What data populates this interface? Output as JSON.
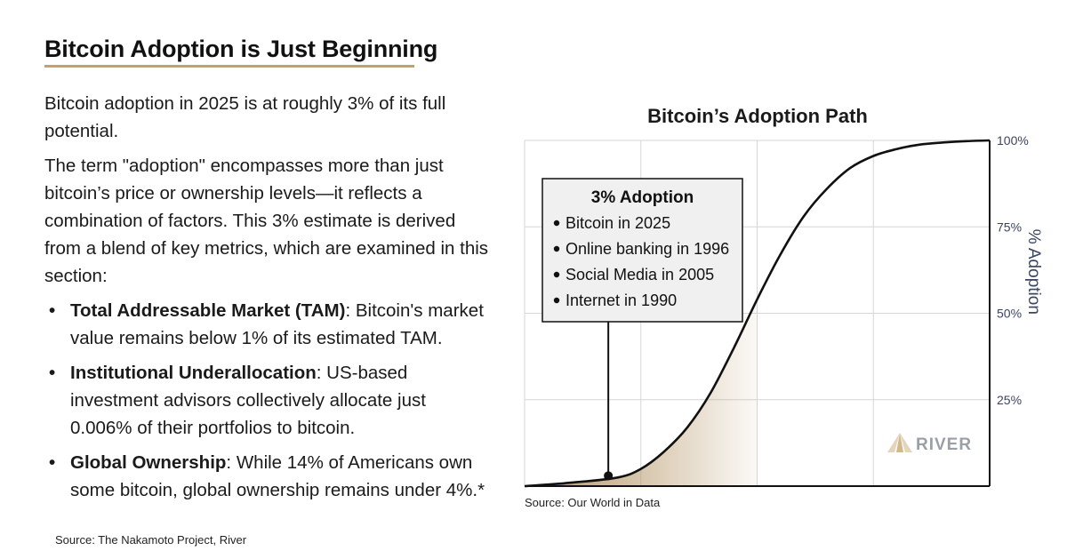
{
  "page": {
    "title": "Bitcoin Adoption is Just Beginning",
    "paragraphs": [
      "Bitcoin adoption in 2025 is at roughly 3% of its full potential.",
      "The term \"adoption\" encompasses more than just bitcoin’s price or ownership levels—it reflects a combination of factors. This 3% estimate is derived from a blend of key metrics, which are examined in this section:"
    ],
    "bullets": [
      {
        "term": "Total Addressable Market (TAM)",
        "text": ": Bitcoin's market value remains below 1% of its estimated TAM."
      },
      {
        "term": "Institutional Underallocation",
        "text": ": US-based investment advisors collectively allocate just 0.006% of their portfolios to bitcoin."
      },
      {
        "term": "Global Ownership",
        "text": ": While 14% of Americans own some bitcoin, global ownership remains under 4%.*"
      }
    ],
    "bullet_glyph": "•",
    "source": "Source: The Nakamoto Project, River"
  },
  "chart_data": {
    "type": "area",
    "title": "Bitcoin’s Adoption Path",
    "ylabel": "% Adoption",
    "y_ticks": [
      "100%",
      "75%",
      "50%",
      "25%"
    ],
    "ylim": [
      0,
      100
    ],
    "xlim": [
      0,
      100
    ],
    "x_labels": [],
    "grid": true,
    "series": [
      {
        "x": [
          0,
          10,
          20,
          25,
          30,
          35,
          40,
          45,
          50,
          55,
          60,
          65,
          70,
          75,
          80,
          85,
          90,
          95,
          100
        ],
        "values": [
          0,
          1,
          2.5,
          5,
          10,
          17,
          27,
          40,
          54,
          67,
          78,
          86,
          92,
          95.5,
          97.5,
          98.8,
          99.4,
          99.8,
          100
        ]
      }
    ],
    "shaded_until_x": 50,
    "marker": {
      "x": 18,
      "y": 3
    },
    "callout": {
      "title": "3% Adoption",
      "items": [
        "Bitcoin in 2025",
        "Online banking in 1996",
        "Social Media in 2005",
        "Internet in 1990"
      ]
    },
    "brand": "RIVER",
    "source": "Source: Our World in Data",
    "colors": {
      "curve": "#111111",
      "grid": "#d6d6d6",
      "fill": "#b08d5a",
      "callout_bg": "#f0f0f0",
      "axis_text": "#3a4660",
      "accent": "#c4a06a",
      "brand": "#9aa0a6"
    }
  }
}
